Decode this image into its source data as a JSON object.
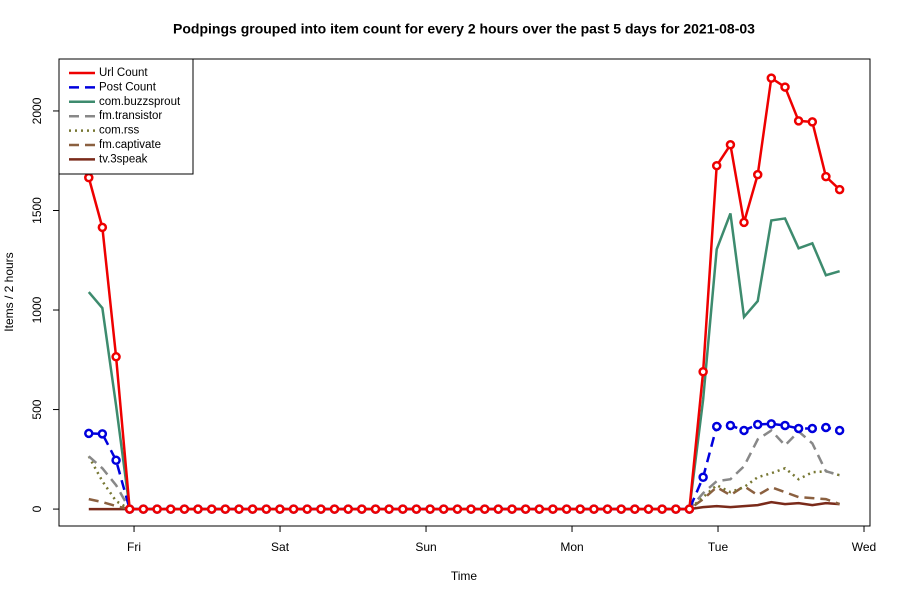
{
  "chart_data": {
    "type": "line",
    "title": "Podpings grouped into item count for every 2 hours  over the past 5 days for 2021-08-03",
    "x_label": "Time",
    "y_label": "Items / 2 hours",
    "x": [
      -0.31,
      -0.217,
      -0.123,
      -0.03,
      0.064,
      0.158,
      0.251,
      0.345,
      0.438,
      0.532,
      0.625,
      0.719,
      0.812,
      0.906,
      0.999,
      1.093,
      1.186,
      1.28,
      1.373,
      1.467,
      1.56,
      1.654,
      1.747,
      1.841,
      1.934,
      2.028,
      2.121,
      2.215,
      2.308,
      2.402,
      2.495,
      2.589,
      2.682,
      2.776,
      2.869,
      2.963,
      3.056,
      3.15,
      3.243,
      3.337,
      3.43,
      3.524,
      3.617,
      3.711,
      3.804,
      3.898,
      3.991,
      4.085,
      4.178,
      4.272,
      4.365,
      4.459,
      4.552,
      4.646,
      4.739,
      4.833
    ],
    "xlim": [
      -0.514,
      5.041
    ],
    "xticks": [
      {
        "value": 0,
        "label": "Fri"
      },
      {
        "value": 1,
        "label": "Sat"
      },
      {
        "value": 2,
        "label": "Sun"
      },
      {
        "value": 3,
        "label": "Mon"
      },
      {
        "value": 4,
        "label": "Tue"
      },
      {
        "value": 5,
        "label": "Wed"
      }
    ],
    "ylim": [
      -85,
      2261
    ],
    "yticks": [
      0,
      500,
      1000,
      1500,
      2000
    ],
    "grid": false,
    "legend": "top-left",
    "series": [
      {
        "name": "Url Count",
        "color": "#ee0000",
        "line_style": "solid",
        "markers": true,
        "values": [
          1665,
          1415,
          765,
          0,
          0,
          0,
          0,
          0,
          0,
          0,
          0,
          0,
          0,
          0,
          0,
          0,
          0,
          0,
          0,
          0,
          0,
          0,
          0,
          0,
          0,
          0,
          0,
          0,
          0,
          0,
          0,
          0,
          0,
          0,
          0,
          0,
          0,
          0,
          0,
          0,
          0,
          0,
          0,
          0,
          0,
          690,
          1725,
          1830,
          1440,
          1680,
          2165,
          2120,
          1950,
          1945,
          1670,
          1605
        ]
      },
      {
        "name": "Post Count",
        "color": "#0000dd",
        "line_style": "dashed",
        "markers": true,
        "values": [
          380,
          378,
          245,
          0,
          0,
          0,
          0,
          0,
          0,
          0,
          0,
          0,
          0,
          0,
          0,
          0,
          0,
          0,
          0,
          0,
          0,
          0,
          0,
          0,
          0,
          0,
          0,
          0,
          0,
          0,
          0,
          0,
          0,
          0,
          0,
          0,
          0,
          0,
          0,
          0,
          0,
          0,
          0,
          0,
          0,
          160,
          415,
          420,
          395,
          425,
          428,
          420,
          405,
          405,
          410,
          395
        ]
      },
      {
        "name": "com.buzzsprout",
        "color": "#3d8b6e",
        "line_style": "solid",
        "markers": false,
        "values": [
          1090,
          1010,
          520,
          0,
          0,
          0,
          0,
          0,
          0,
          0,
          0,
          0,
          0,
          0,
          0,
          0,
          0,
          0,
          0,
          0,
          0,
          0,
          0,
          0,
          0,
          0,
          0,
          0,
          0,
          0,
          0,
          0,
          0,
          0,
          0,
          0,
          0,
          0,
          0,
          0,
          0,
          0,
          0,
          0,
          0,
          550,
          1305,
          1485,
          965,
          1045,
          1450,
          1460,
          1310,
          1335,
          1175,
          1195
        ]
      },
      {
        "name": "fm.transistor",
        "color": "#888888",
        "line_style": "dashed",
        "markers": false,
        "values": [
          265,
          205,
          120,
          0,
          0,
          0,
          0,
          0,
          0,
          0,
          0,
          0,
          0,
          0,
          0,
          0,
          0,
          0,
          0,
          0,
          0,
          0,
          0,
          0,
          0,
          0,
          0,
          0,
          0,
          0,
          0,
          0,
          0,
          0,
          0,
          0,
          0,
          0,
          0,
          0,
          0,
          0,
          0,
          0,
          0,
          80,
          140,
          150,
          215,
          350,
          395,
          320,
          390,
          330,
          190,
          170
        ]
      },
      {
        "name": "com.rss",
        "color": "#777733",
        "line_style": "dotted",
        "markers": false,
        "values": [
          265,
          140,
          40,
          0,
          0,
          0,
          0,
          0,
          0,
          0,
          0,
          0,
          0,
          0,
          0,
          0,
          0,
          0,
          0,
          0,
          0,
          0,
          0,
          0,
          0,
          0,
          0,
          0,
          0,
          0,
          0,
          0,
          0,
          0,
          0,
          0,
          0,
          0,
          0,
          0,
          0,
          0,
          0,
          0,
          0,
          60,
          120,
          85,
          110,
          160,
          180,
          205,
          150,
          185,
          190,
          170
        ]
      },
      {
        "name": "fm.captivate",
        "color": "#8b6040",
        "line_style": "dashed",
        "markers": false,
        "values": [
          50,
          35,
          15,
          0,
          0,
          0,
          0,
          0,
          0,
          0,
          0,
          0,
          0,
          0,
          0,
          0,
          0,
          0,
          0,
          0,
          0,
          0,
          0,
          0,
          0,
          0,
          0,
          0,
          0,
          0,
          0,
          0,
          0,
          0,
          0,
          0,
          0,
          0,
          0,
          0,
          0,
          0,
          0,
          0,
          0,
          50,
          110,
          70,
          115,
          70,
          110,
          85,
          60,
          55,
          50,
          25
        ]
      },
      {
        "name": "tv.3speak",
        "color": "#7a2a1a",
        "line_style": "solid",
        "markers": false,
        "values": [
          0,
          0,
          0,
          0,
          0,
          0,
          0,
          0,
          0,
          0,
          0,
          0,
          0,
          0,
          0,
          0,
          0,
          0,
          0,
          0,
          0,
          0,
          0,
          0,
          0,
          0,
          0,
          0,
          0,
          0,
          0,
          0,
          0,
          0,
          0,
          0,
          0,
          0,
          0,
          0,
          0,
          0,
          0,
          0,
          0,
          10,
          15,
          10,
          15,
          20,
          35,
          25,
          30,
          20,
          30,
          25
        ]
      }
    ]
  }
}
